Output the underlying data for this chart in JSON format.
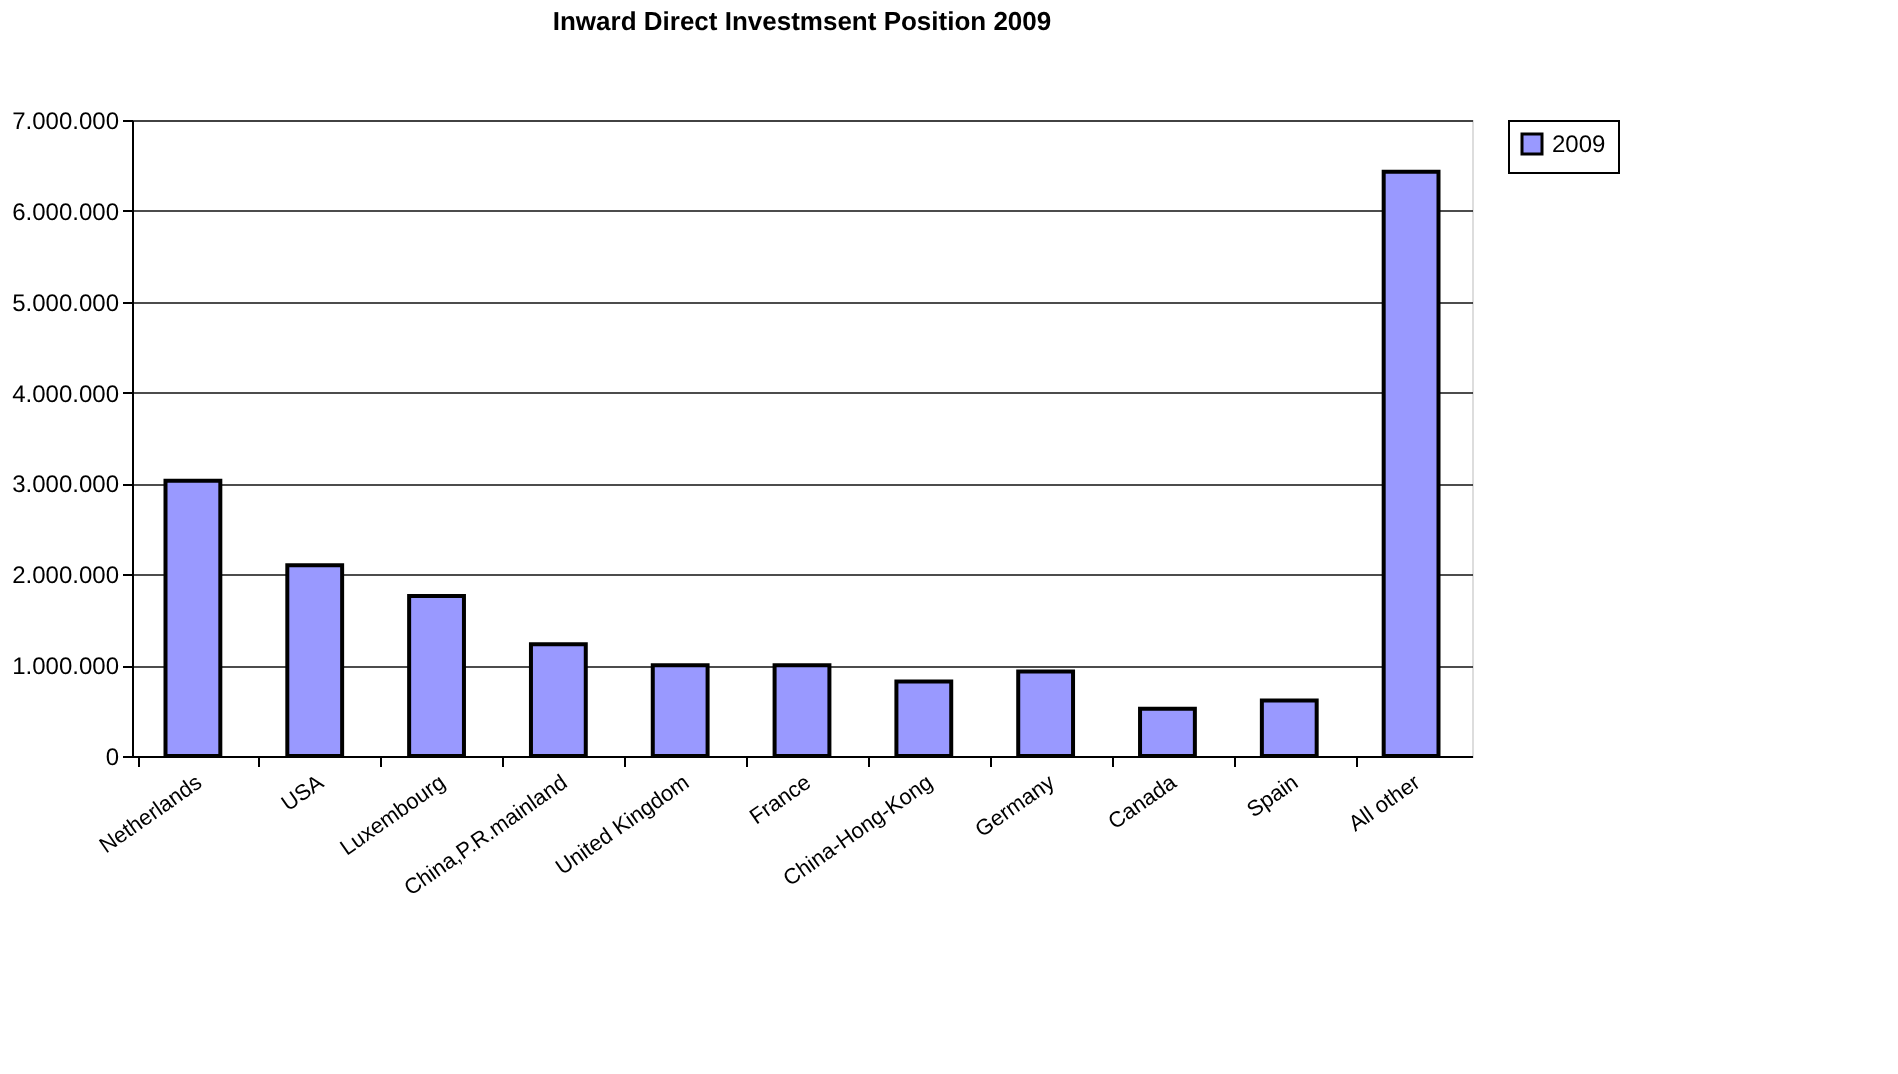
{
  "chart_data": {
    "type": "bar",
    "title": "Inward Direct Investmsent Position 2009",
    "categories": [
      "Netherlands",
      "USA",
      "Luxembourg",
      "China,P.R.mainland",
      "United Kingdom",
      "France",
      "China-Hong-Kong",
      "Germany",
      "Canada",
      "Spain",
      "All other"
    ],
    "series": [
      {
        "name": "2009",
        "color": "#9999ff",
        "values": [
          3030000,
          2100000,
          1760000,
          1230000,
          1000000,
          1000000,
          820000,
          930000,
          520000,
          610000,
          6430000
        ]
      }
    ],
    "ylim": [
      0,
      7000000
    ],
    "yticks": [
      {
        "value": 0,
        "label": "0"
      },
      {
        "value": 1000000,
        "label": "1.000.000"
      },
      {
        "value": 2000000,
        "label": "2.000.000"
      },
      {
        "value": 3000000,
        "label": "3.000.000"
      },
      {
        "value": 4000000,
        "label": "4.000.000"
      },
      {
        "value": 5000000,
        "label": "5.000.000"
      },
      {
        "value": 6000000,
        "label": "6.000.000"
      },
      {
        "value": 7000000,
        "label": "7.000.000"
      }
    ],
    "grid": "y",
    "legend": "right"
  }
}
